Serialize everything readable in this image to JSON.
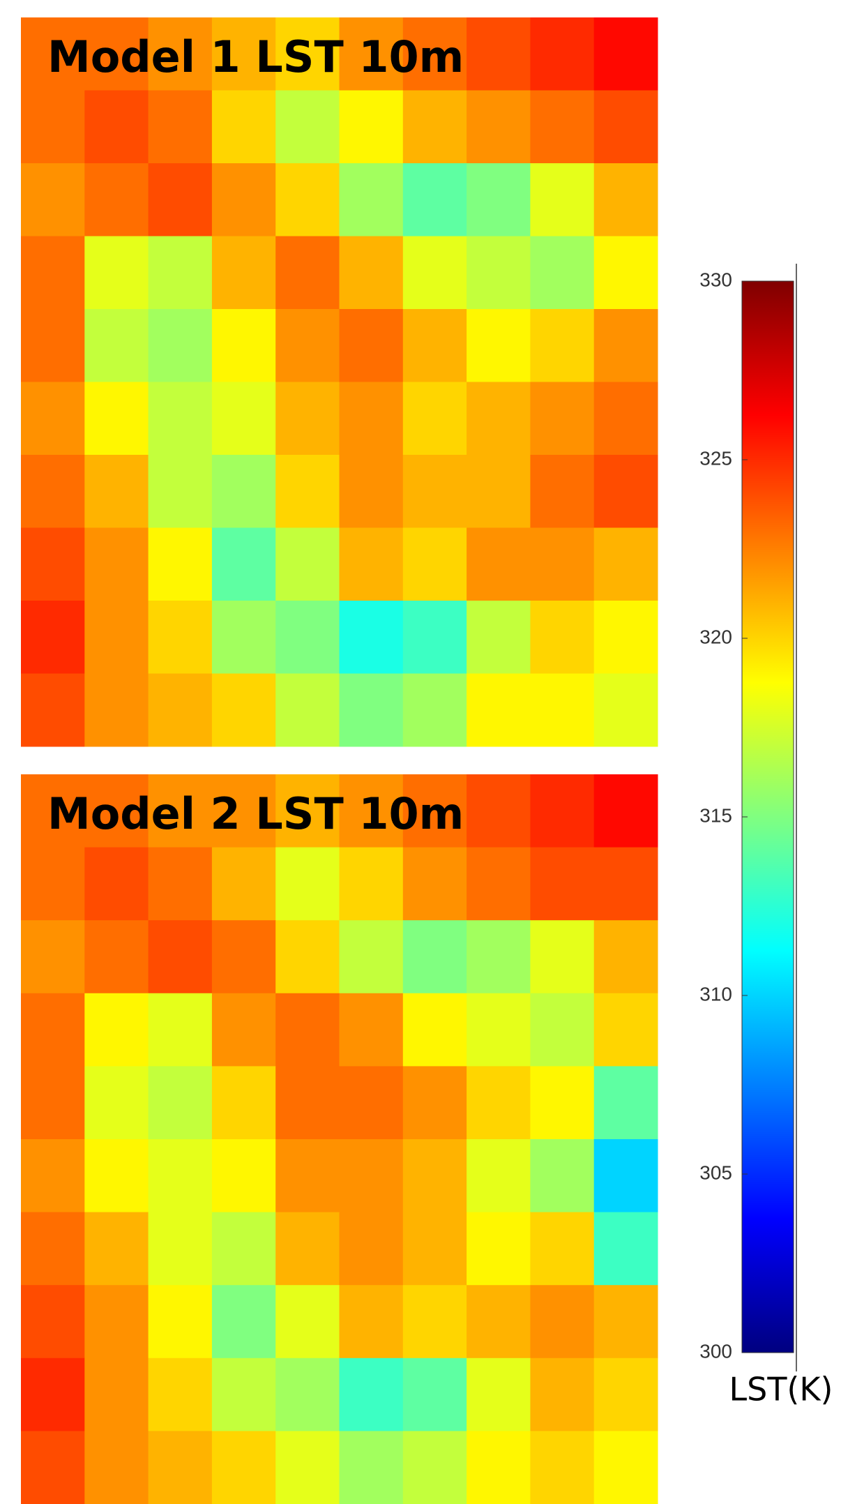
{
  "chart_data": {
    "type": "heatmap",
    "colormap": "jet",
    "colorbar": {
      "label": "LST(K)",
      "lim": [
        300,
        330
      ],
      "ticks": [
        300,
        305,
        310,
        315,
        320,
        325,
        330
      ]
    },
    "panels": [
      {
        "title": "Model 1 LST 10m",
        "values": [
          [
            323,
            323,
            322,
            321,
            320,
            322,
            323,
            324,
            325,
            326
          ],
          [
            323,
            324,
            323,
            320,
            317,
            319,
            321,
            322,
            323,
            324
          ],
          [
            322,
            323,
            324,
            322,
            320,
            316,
            314,
            315,
            318,
            321
          ],
          [
            323,
            318,
            317,
            321,
            323,
            321,
            318,
            317,
            316,
            319
          ],
          [
            323,
            317,
            316,
            319,
            322,
            323,
            321,
            319,
            320,
            322
          ],
          [
            322,
            319,
            317,
            318,
            321,
            322,
            320,
            321,
            322,
            323
          ],
          [
            323,
            321,
            317,
            316,
            320,
            322,
            321,
            321,
            323,
            324
          ],
          [
            324,
            322,
            319,
            314,
            317,
            321,
            320,
            322,
            322,
            321
          ],
          [
            325,
            322,
            320,
            316,
            315,
            312,
            313,
            317,
            320,
            319
          ],
          [
            324,
            322,
            321,
            320,
            317,
            315,
            316,
            319,
            319,
            318
          ]
        ]
      },
      {
        "title": "Model 2 LST 10m",
        "values": [
          [
            323,
            323,
            322,
            322,
            321,
            322,
            323,
            324,
            325,
            326
          ],
          [
            323,
            324,
            323,
            321,
            318,
            320,
            322,
            323,
            324,
            324
          ],
          [
            322,
            323,
            324,
            323,
            320,
            317,
            315,
            316,
            318,
            321
          ],
          [
            323,
            319,
            318,
            322,
            323,
            322,
            319,
            318,
            317,
            320
          ],
          [
            323,
            318,
            317,
            320,
            323,
            323,
            322,
            320,
            319,
            314
          ],
          [
            322,
            319,
            318,
            319,
            322,
            322,
            321,
            318,
            316,
            310
          ],
          [
            323,
            321,
            318,
            317,
            321,
            322,
            321,
            319,
            320,
            313
          ],
          [
            324,
            322,
            319,
            315,
            318,
            321,
            320,
            321,
            322,
            321
          ],
          [
            325,
            322,
            320,
            317,
            316,
            313,
            314,
            318,
            321,
            320
          ],
          [
            324,
            322,
            321,
            320,
            318,
            316,
            317,
            319,
            320,
            319
          ]
        ]
      }
    ]
  }
}
